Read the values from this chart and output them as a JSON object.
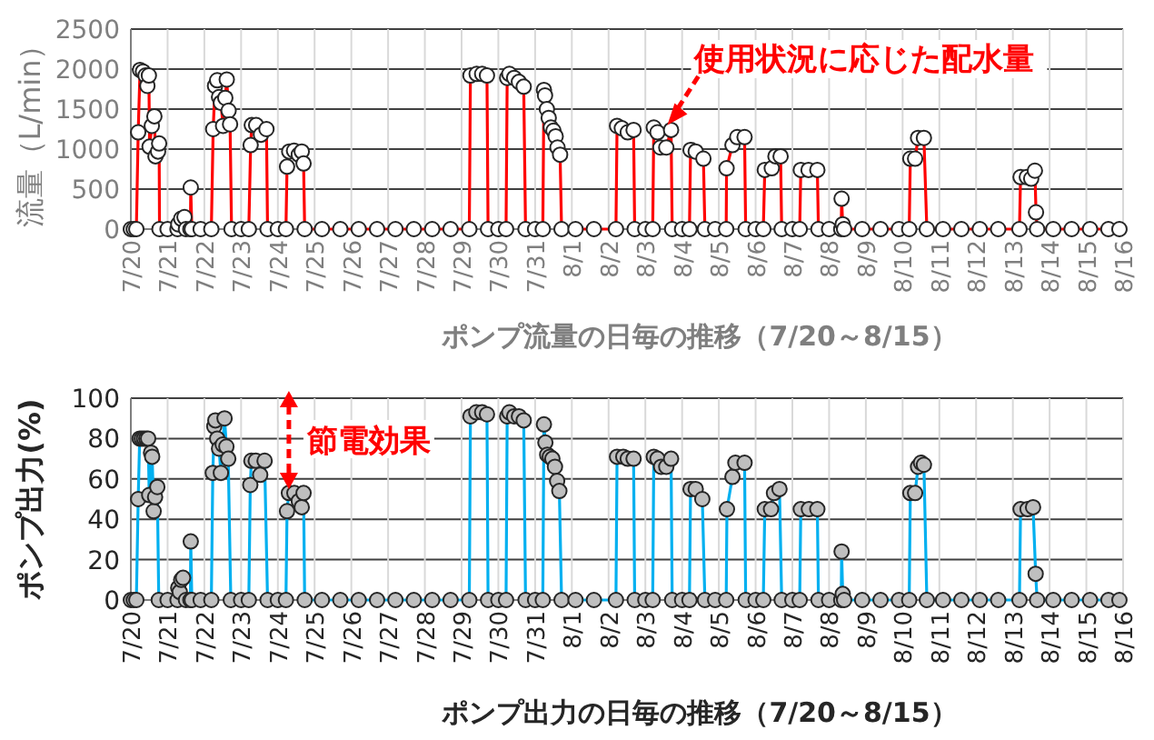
{
  "chart_data": [
    {
      "type": "line",
      "xlabel": "ポンプ流量の日毎の推移（7/20～8/15）",
      "ylabel": "流量（L/min）",
      "grid": true,
      "marker": "circle",
      "xlim": [
        "--07-20",
        "--08-16"
      ],
      "ylim": [
        0,
        2500
      ],
      "yticks": [
        0,
        500,
        1000,
        1500,
        2000,
        2500
      ],
      "xticks": [
        {
          "value": "--07-20",
          "label": "7/20"
        },
        {
          "value": "--07-21",
          "label": "7/21"
        },
        {
          "value": "--07-22",
          "label": "7/22"
        },
        {
          "value": "--07-23",
          "label": "7/23"
        },
        {
          "value": "--07-24",
          "label": "7/24"
        },
        {
          "value": "--07-25",
          "label": "7/25"
        },
        {
          "value": "--07-26",
          "label": "7/26"
        },
        {
          "value": "--07-27",
          "label": "7/27"
        },
        {
          "value": "--07-28",
          "label": "7/28"
        },
        {
          "value": "--07-29",
          "label": "7/29"
        },
        {
          "value": "--07-30",
          "label": "7/30"
        },
        {
          "value": "--07-31",
          "label": "7/31"
        },
        {
          "value": "--08-01",
          "label": "8/1"
        },
        {
          "value": "--08-02",
          "label": "8/2"
        },
        {
          "value": "--08-03",
          "label": "8/3"
        },
        {
          "value": "--08-04",
          "label": "8/4"
        },
        {
          "value": "--08-05",
          "label": "8/5"
        },
        {
          "value": "--08-06",
          "label": "8/6"
        },
        {
          "value": "--08-07",
          "label": "8/7"
        },
        {
          "value": "--08-08",
          "label": "8/8"
        },
        {
          "value": "--08-09",
          "label": "8/9"
        },
        {
          "value": "--08-10",
          "label": "8/10"
        },
        {
          "value": "--08-11",
          "label": "8/11"
        },
        {
          "value": "--08-12",
          "label": "8/12"
        },
        {
          "value": "--08-13",
          "label": "8/13"
        },
        {
          "value": "--08-14",
          "label": "8/14"
        },
        {
          "value": "--08-15",
          "label": "8/15"
        },
        {
          "value": "--08-16",
          "label": "8/16"
        }
      ],
      "annotations": [
        {
          "text": "使用状況に応じた配水量",
          "x": "--08-03T14:24",
          "y": 1300
        }
      ],
      "x": [
        "--07-20T00:00",
        "--07-20T01:55",
        "--07-20T03:36",
        "--07-20T04:48",
        "--07-20T06:00",
        "--07-20T07:55",
        "--07-20T09:36",
        "--07-20T10:48",
        "--07-20T11:46",
        "--07-20T12:14",
        "--07-20T13:41",
        "--07-20T15:22",
        "--07-20T16:05",
        "--07-20T17:46",
        "--07-20T18:29",
        "--07-20T18:43",
        "--07-21T00:00",
        "--07-21T06:29",
        "--07-21T06:58",
        "--07-21T08:53",
        "--07-21T11:02",
        "--07-21T12:00",
        "--07-21T14:53",
        "--07-21T15:07",
        "--07-21T15:50",
        "--07-21T21:36",
        "--07-22T04:34",
        "--07-22T05:46",
        "--07-22T06:58",
        "--07-22T08:24",
        "--07-22T09:36",
        "--07-22T10:48",
        "--07-22T12:14",
        "--07-22T13:41",
        "--07-22T14:38",
        "--07-22T15:50",
        "--07-22T16:48",
        "--07-22T17:46",
        "--07-23T00:00",
        "--07-23T05:02",
        "--07-23T06:14",
        "--07-23T06:58",
        "--07-23T09:50",
        "--07-23T12:58",
        "--07-23T16:34",
        "--07-23T17:17",
        "--07-24T00:00",
        "--07-24T05:17",
        "--07-24T06:00",
        "--07-24T07:26",
        "--07-24T10:34",
        "--07-24T13:41",
        "--07-24T15:36",
        "--07-24T16:48",
        "--07-24T17:31",
        "--07-25T04:48",
        "--07-25T16:48",
        "--07-26T04:48",
        "--07-26T16:48",
        "--07-27T04:48",
        "--07-27T16:48",
        "--07-28T04:48",
        "--07-28T16:48",
        "--07-29T05:02",
        "--07-29T05:46",
        "--07-29T09:50",
        "--07-29T13:26",
        "--07-29T16:34",
        "--07-29T17:17",
        "--07-30T00:00",
        "--07-30T05:02",
        "--07-30T05:46",
        "--07-30T07:12",
        "--07-30T10:19",
        "--07-30T13:26",
        "--07-30T16:34",
        "--07-30T17:46",
        "--07-31T00:00",
        "--07-31T05:02",
        "--07-31T05:46",
        "--07-31T06:29",
        "--07-31T07:41",
        "--07-31T08:53",
        "--07-31T10:19",
        "--07-31T12:00",
        "--07-31T13:26",
        "--07-31T14:38",
        "--07-31T16:19",
        "--07-31T17:17",
        "--08-01T02:24",
        "--08-01T14:24",
        "--08-02T04:48",
        "--08-02T05:31",
        "--08-02T08:38",
        "--08-02T12:29",
        "--08-02T16:19",
        "--08-02T17:02",
        "--08-03T00:00",
        "--08-03T04:48",
        "--08-03T05:31",
        "--08-03T07:55",
        "--08-03T09:50",
        "--08-03T13:41",
        "--08-03T16:48",
        "--08-03T17:31",
        "--08-04T00:00",
        "--08-04T04:48",
        "--08-04T05:31",
        "--08-04T08:53",
        "--08-04T13:55",
        "--08-04T14:53",
        "--08-04T21:36",
        "--08-05T04:48",
        "--08-05T05:02",
        "--08-05T08:53",
        "--08-05T12:00",
        "--08-05T16:48",
        "--08-05T17:31",
        "--08-06T00:00",
        "--08-06T05:02",
        "--08-06T06:00",
        "--08-06T10:34",
        "--08-06T12:58",
        "--08-06T16:19",
        "--08-06T17:02",
        "--08-07T00:00",
        "--08-07T04:48",
        "--08-07T05:31",
        "--08-07T10:34",
        "--08-07T16:19",
        "--08-07T17:02",
        "--08-08T00:00",
        "--08-08T07:55",
        "--08-08T08:10",
        "--08-08T08:53",
        "--08-08T09:50",
        "--08-08T21:36",
        "--08-09T09:36",
        "--08-09T21:36",
        "--08-10T04:19",
        "--08-10T05:02",
        "--08-10T08:10",
        "--08-10T10:05",
        "--08-10T13:55",
        "--08-10T15:50",
        "--08-11T02:24",
        "--08-11T14:24",
        "--08-12T02:24",
        "--08-12T14:24",
        "--08-13T04:19",
        "--08-13T05:02",
        "--08-13T09:07",
        "--08-13T12:00",
        "--08-13T14:24",
        "--08-13T15:07",
        "--08-13T15:50",
        "--08-14T02:24",
        "--08-14T14:24",
        "--08-15T02:24",
        "--08-15T14:24",
        "--08-15T21:36"
      ],
      "series": [
        {
          "color": "#ff0000",
          "values": [
            0,
            0,
            0,
            1210,
            1990,
            1970,
            1920,
            1790,
            1920,
            1030,
            1290,
            1410,
            910,
            970,
            1070,
            0,
            0,
            0,
            60,
            130,
            150,
            0,
            0,
            520,
            0,
            0,
            0,
            1250,
            1790,
            1860,
            1650,
            1580,
            1290,
            1640,
            1870,
            1480,
            1310,
            0,
            0,
            0,
            1050,
            1300,
            1300,
            1180,
            1250,
            0,
            0,
            0,
            780,
            970,
            980,
            930,
            970,
            820,
            0,
            0,
            0,
            0,
            0,
            0,
            0,
            0,
            0,
            0,
            1920,
            1940,
            1940,
            1920,
            0,
            0,
            0,
            1890,
            1940,
            1890,
            1840,
            1780,
            0,
            0,
            0,
            1740,
            1670,
            1500,
            1390,
            1270,
            1230,
            1160,
            1020,
            930,
            0,
            0,
            0,
            0,
            1290,
            1260,
            1210,
            1240,
            0,
            0,
            0,
            1270,
            1210,
            1020,
            1020,
            1240,
            0,
            0,
            0,
            990,
            970,
            880,
            0,
            0,
            0,
            760,
            1050,
            1150,
            1150,
            0,
            0,
            0,
            740,
            760,
            910,
            910,
            0,
            0,
            0,
            740,
            740,
            740,
            0,
            0,
            0,
            380,
            60,
            0,
            0,
            0,
            0,
            0,
            880,
            880,
            1140,
            1140,
            0,
            0,
            0,
            0,
            0,
            0,
            650,
            650,
            630,
            730,
            210,
            0,
            0,
            0,
            0,
            0,
            0
          ]
        }
      ]
    },
    {
      "type": "line",
      "xlabel": "ポンプ出力の日毎の推移（7/20～8/15）",
      "ylabel": "ポンプ出力(%)",
      "grid": true,
      "marker": "circle",
      "xlim": [
        "--07-20",
        "--08-16"
      ],
      "ylim": [
        0,
        100
      ],
      "yticks": [
        0,
        20,
        40,
        60,
        80,
        100
      ],
      "xticks": [
        {
          "value": "--07-20",
          "label": "7/20"
        },
        {
          "value": "--07-21",
          "label": "7/21"
        },
        {
          "value": "--07-22",
          "label": "7/22"
        },
        {
          "value": "--07-23",
          "label": "7/23"
        },
        {
          "value": "--07-24",
          "label": "7/24"
        },
        {
          "value": "--07-25",
          "label": "7/25"
        },
        {
          "value": "--07-26",
          "label": "7/26"
        },
        {
          "value": "--07-27",
          "label": "7/27"
        },
        {
          "value": "--07-28",
          "label": "7/28"
        },
        {
          "value": "--07-29",
          "label": "7/29"
        },
        {
          "value": "--07-30",
          "label": "7/30"
        },
        {
          "value": "--07-31",
          "label": "7/31"
        },
        {
          "value": "--08-01",
          "label": "8/1"
        },
        {
          "value": "--08-02",
          "label": "8/2"
        },
        {
          "value": "--08-03",
          "label": "8/3"
        },
        {
          "value": "--08-04",
          "label": "8/4"
        },
        {
          "value": "--08-05",
          "label": "8/5"
        },
        {
          "value": "--08-06",
          "label": "8/6"
        },
        {
          "value": "--08-07",
          "label": "8/7"
        },
        {
          "value": "--08-08",
          "label": "8/8"
        },
        {
          "value": "--08-09",
          "label": "8/9"
        },
        {
          "value": "--08-10",
          "label": "8/10"
        },
        {
          "value": "--08-11",
          "label": "8/11"
        },
        {
          "value": "--08-12",
          "label": "8/12"
        },
        {
          "value": "--08-13",
          "label": "8/13"
        },
        {
          "value": "--08-14",
          "label": "8/14"
        },
        {
          "value": "--08-15",
          "label": "8/15"
        },
        {
          "value": "--08-16",
          "label": "8/16"
        }
      ],
      "annotations": [
        {
          "text": "節電効果",
          "x": "--07-24T07:12",
          "y": 55
        }
      ],
      "x": [
        "--07-20T00:00",
        "--07-20T01:55",
        "--07-20T03:36",
        "--07-20T04:48",
        "--07-20T05:46",
        "--07-20T07:12",
        "--07-20T08:38",
        "--07-20T10:05",
        "--07-20T11:17",
        "--07-20T12:00",
        "--07-20T13:12",
        "--07-20T13:55",
        "--07-20T14:53",
        "--07-20T15:50",
        "--07-20T17:17",
        "--07-20T18:14",
        "--07-21T00:00",
        "--07-21T06:29",
        "--07-21T06:58",
        "--07-21T07:55",
        "--07-21T08:53",
        "--07-21T10:05",
        "--07-21T12:00",
        "--07-21T14:53",
        "--07-21T15:07",
        "--07-21T15:50",
        "--07-21T21:36",
        "--07-22T04:34",
        "--07-22T05:31",
        "--07-22T06:29",
        "--07-22T07:12",
        "--07-22T08:24",
        "--07-22T09:36",
        "--07-22T10:48",
        "--07-22T12:00",
        "--07-22T13:12",
        "--07-22T14:24",
        "--07-22T15:36",
        "--07-22T17:17",
        "--07-23T00:00",
        "--07-23T05:02",
        "--07-23T06:00",
        "--07-23T06:43",
        "--07-23T09:36",
        "--07-23T12:29",
        "--07-23T15:22",
        "--07-23T17:17",
        "--07-24T00:00",
        "--07-24T05:17",
        "--07-24T06:00",
        "--07-24T07:12",
        "--07-24T10:48",
        "--07-24T13:41",
        "--07-24T15:36",
        "--07-24T16:48",
        "--07-24T17:31",
        "--07-25T04:48",
        "--07-25T16:48",
        "--07-26T04:48",
        "--07-26T16:48",
        "--07-27T04:48",
        "--07-27T16:48",
        "--07-28T04:48",
        "--07-28T16:48",
        "--07-29T05:02",
        "--07-29T05:46",
        "--07-29T09:36",
        "--07-29T13:26",
        "--07-29T16:34",
        "--07-29T17:17",
        "--07-30T00:00",
        "--07-30T05:02",
        "--07-30T05:46",
        "--07-30T07:12",
        "--07-30T10:19",
        "--07-30T13:26",
        "--07-30T16:34",
        "--07-30T17:46",
        "--07-31T00:00",
        "--07-31T05:02",
        "--07-31T05:46",
        "--07-31T06:43",
        "--07-31T07:55",
        "--07-31T09:36",
        "--07-31T11:17",
        "--07-31T12:58",
        "--07-31T14:24",
        "--07-31T15:50",
        "--07-31T17:17",
        "--08-01T02:24",
        "--08-01T14:24",
        "--08-02T04:48",
        "--08-02T05:31",
        "--08-02T09:36",
        "--08-02T12:29",
        "--08-02T16:19",
        "--08-02T17:02",
        "--08-03T00:00",
        "--08-03T04:48",
        "--08-03T05:31",
        "--08-03T07:55",
        "--08-03T10:19",
        "--08-03T13:41",
        "--08-03T16:48",
        "--08-03T17:31",
        "--08-04T00:00",
        "--08-04T04:48",
        "--08-04T05:31",
        "--08-04T08:53",
        "--08-04T13:12",
        "--08-04T14:53",
        "--08-04T21:36",
        "--08-05T04:48",
        "--08-05T05:17",
        "--08-05T08:53",
        "--08-05T10:48",
        "--08-05T16:48",
        "--08-05T17:31",
        "--08-06T00:00",
        "--08-06T05:02",
        "--08-06T06:00",
        "--08-06T10:05",
        "--08-06T12:00",
        "--08-06T15:36",
        "--08-06T17:02",
        "--08-07T00:00",
        "--08-07T04:48",
        "--08-07T05:31",
        "--08-07T10:48",
        "--08-07T16:19",
        "--08-07T17:02",
        "--08-08T00:00",
        "--08-08T07:55",
        "--08-08T08:10",
        "--08-08T08:53",
        "--08-08T09:50",
        "--08-08T21:36",
        "--08-09T09:36",
        "--08-09T21:36",
        "--08-10T04:19",
        "--08-10T05:02",
        "--08-10T08:10",
        "--08-10T10:05",
        "--08-10T12:00",
        "--08-10T13:55",
        "--08-10T15:50",
        "--08-11T02:24",
        "--08-11T14:24",
        "--08-12T02:24",
        "--08-12T14:24",
        "--08-13T04:19",
        "--08-13T05:02",
        "--08-13T09:36",
        "--08-13T13:12",
        "--08-13T14:53",
        "--08-13T15:50",
        "--08-14T02:24",
        "--08-14T14:24",
        "--08-15T02:24",
        "--08-15T14:24",
        "--08-15T21:36"
      ],
      "series": [
        {
          "color": "#00b0f0",
          "values": [
            0,
            0,
            0,
            50,
            80,
            80,
            80,
            80,
            80,
            52,
            73,
            71,
            44,
            51,
            56,
            0,
            0,
            0,
            6,
            4,
            10,
            11,
            0,
            0,
            29,
            0,
            0,
            0,
            63,
            86,
            89,
            80,
            75,
            63,
            77,
            90,
            76,
            70,
            0,
            0,
            0,
            57,
            69,
            69,
            62,
            69,
            0,
            0,
            0,
            44,
            53,
            53,
            49,
            46,
            53,
            0,
            0,
            0,
            0,
            0,
            0,
            0,
            0,
            0,
            0,
            91,
            93,
            93,
            92,
            0,
            0,
            0,
            91,
            93,
            91,
            91,
            89,
            0,
            0,
            0,
            87,
            78,
            72,
            71,
            70,
            66,
            59,
            54,
            0,
            0,
            0,
            0,
            71,
            71,
            70,
            70,
            0,
            0,
            0,
            71,
            70,
            66,
            66,
            70,
            0,
            0,
            0,
            55,
            55,
            50,
            0,
            0,
            0,
            45,
            61,
            68,
            68,
            0,
            0,
            0,
            45,
            45,
            53,
            55,
            0,
            0,
            0,
            45,
            45,
            45,
            0,
            0,
            0,
            24,
            3,
            0,
            0,
            0,
            0,
            0,
            53,
            53,
            66,
            68,
            67,
            0,
            0,
            0,
            0,
            0,
            0,
            45,
            45,
            46,
            13,
            0,
            0,
            0,
            0,
            0,
            0
          ]
        }
      ]
    }
  ]
}
